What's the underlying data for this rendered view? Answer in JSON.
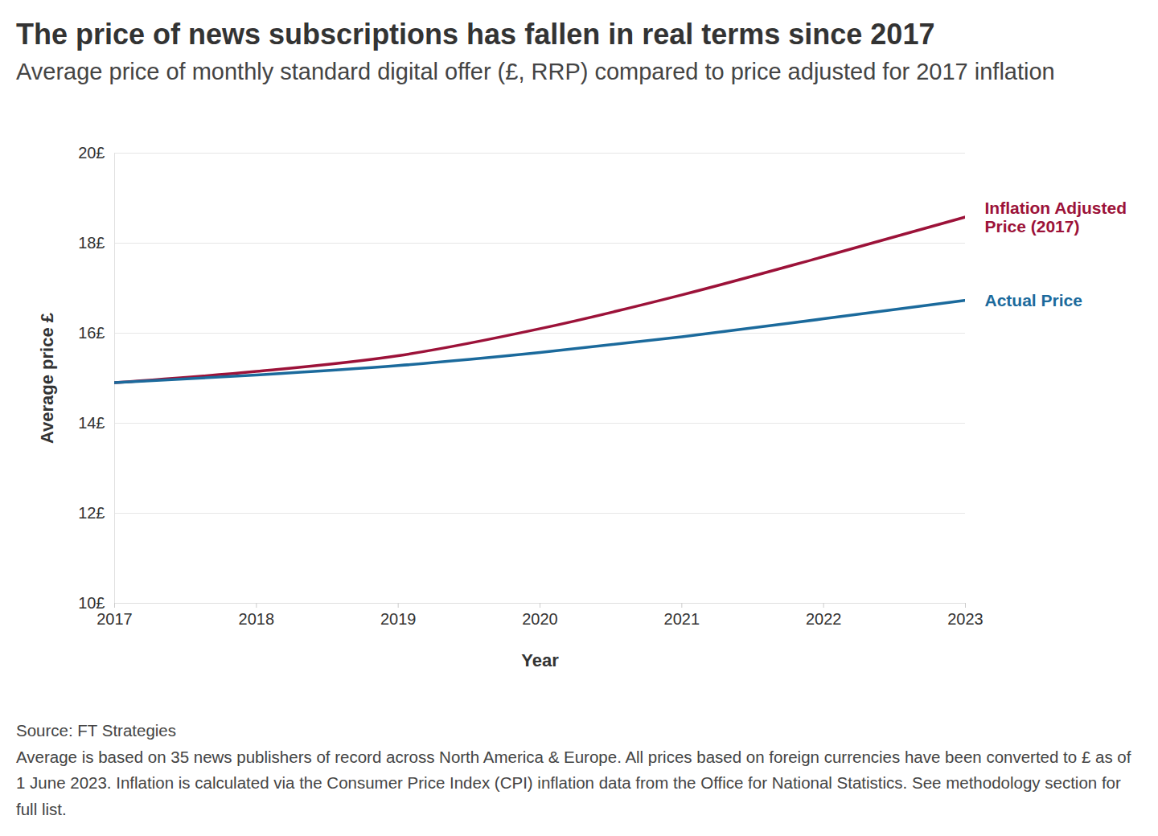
{
  "chart_data": {
    "type": "line",
    "title": "The price of news subscriptions has fallen in real terms since 2017",
    "subtitle": "Average price of monthly standard digital offer (£, RRP) compared to price adjusted for 2017 inflation",
    "x_label": "Year",
    "y_label": "Average price £",
    "x": [
      2017,
      2018,
      2019,
      2020,
      2021,
      2022,
      2023
    ],
    "series": [
      {
        "name": "Inflation Adjusted Price (2017)",
        "color": "#9c1239",
        "values": [
          14.9,
          15.15,
          15.5,
          16.1,
          16.85,
          17.7,
          18.58
        ]
      },
      {
        "name": "Actual Price",
        "color": "#1b6a9c",
        "values": [
          14.9,
          15.07,
          15.28,
          15.57,
          15.92,
          16.32,
          16.73
        ]
      }
    ],
    "xlim": [
      2017,
      2023
    ],
    "xticks": [
      2017,
      2018,
      2019,
      2020,
      2021,
      2022,
      2023
    ],
    "ylim": [
      10,
      20
    ],
    "yticks": [
      {
        "value": 10,
        "label": "10£"
      },
      {
        "value": 12,
        "label": "12£"
      },
      {
        "value": 14,
        "label": "14£"
      },
      {
        "value": 16,
        "label": "16£"
      },
      {
        "value": 18,
        "label": "18£"
      },
      {
        "value": 20,
        "label": "20£"
      }
    ],
    "grid": true,
    "source": "Source: FT Strategies",
    "note": "Average is based on 35 news publishers of record across North America & Europe. All prices based on foreign currencies have been converted to £ as of 1 June 2023. Inflation is calculated via the Consumer Price Index (CPI) inflation data from the Office for National Statistics. See methodology section for full list."
  }
}
